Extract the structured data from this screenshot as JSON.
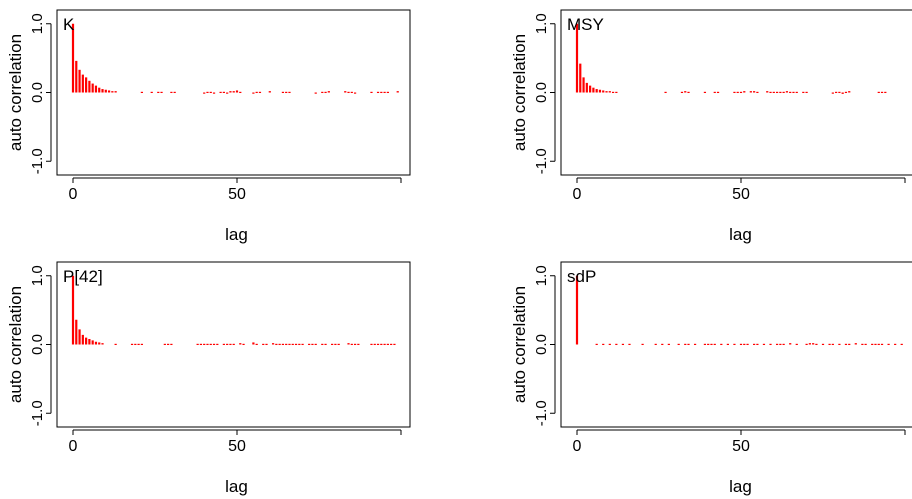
{
  "bar_color": "#ff0000",
  "chart_data": [
    {
      "type": "bar",
      "title": "K",
      "xlabel": "lag",
      "ylabel": "auto correlation",
      "xlim": [
        0,
        100
      ],
      "ylim": [
        -1.2,
        1.2
      ],
      "xticks": [
        "0",
        "50"
      ],
      "yticks": [
        "-1.0",
        "0.0",
        "1.0"
      ],
      "x": [
        0,
        1,
        2,
        3,
        4,
        5,
        6,
        7,
        8,
        9,
        10,
        11,
        12,
        13,
        21,
        24,
        26,
        27,
        30,
        31,
        40,
        41,
        42,
        43,
        45,
        46,
        47,
        48,
        49,
        50,
        51,
        55,
        56,
        57,
        60,
        64,
        65,
        66,
        74,
        76,
        77,
        78,
        83,
        84,
        85,
        86,
        91,
        93,
        94,
        95,
        96,
        99
      ],
      "values": [
        1.0,
        0.46,
        0.33,
        0.26,
        0.22,
        0.17,
        0.13,
        0.1,
        0.07,
        0.05,
        0.04,
        0.03,
        0.02,
        0.02,
        0.01,
        0.01,
        0.01,
        0.01,
        0.01,
        0.01,
        -0.01,
        0.01,
        0.01,
        -0.01,
        0.01,
        0.01,
        -0.01,
        0.02,
        0.02,
        0.03,
        0.01,
        -0.01,
        0.01,
        0.01,
        0.02,
        0.01,
        0.01,
        0.01,
        -0.01,
        0.01,
        0.01,
        0.02,
        0.02,
        0.01,
        0.01,
        -0.01,
        0.01,
        0.01,
        0.01,
        0.01,
        0.01,
        0.02
      ]
    },
    {
      "type": "bar",
      "title": "MSY",
      "xlabel": "lag",
      "ylabel": "auto correlation",
      "xlim": [
        0,
        100
      ],
      "ylim": [
        -1.2,
        1.2
      ],
      "xticks": [
        "0",
        "50"
      ],
      "yticks": [
        "-1.0",
        "0.0",
        "1.0"
      ],
      "x": [
        0,
        1,
        2,
        3,
        4,
        5,
        6,
        7,
        8,
        9,
        10,
        11,
        12,
        27,
        32,
        33,
        34,
        39,
        42,
        43,
        48,
        49,
        50,
        51,
        53,
        54,
        55,
        58,
        59,
        60,
        61,
        62,
        63,
        64,
        65,
        66,
        67,
        69,
        70,
        78,
        79,
        80,
        81,
        82,
        83,
        92,
        93,
        94
      ],
      "values": [
        1.0,
        0.42,
        0.22,
        0.14,
        0.1,
        0.07,
        0.05,
        0.04,
        0.03,
        0.02,
        0.02,
        0.01,
        0.01,
        0.01,
        0.01,
        0.02,
        0.01,
        0.01,
        0.01,
        0.01,
        0.01,
        0.01,
        0.01,
        0.02,
        0.02,
        0.02,
        0.01,
        0.02,
        0.01,
        0.01,
        0.01,
        0.01,
        0.01,
        0.02,
        0.01,
        0.01,
        0.01,
        0.01,
        0.01,
        -0.01,
        0.01,
        0.01,
        -0.02,
        0.01,
        0.02,
        0.01,
        0.01,
        0.01
      ]
    },
    {
      "type": "bar",
      "title": "P[42]",
      "xlabel": "lag",
      "ylabel": "auto correlation",
      "xlim": [
        0,
        100
      ],
      "ylim": [
        -1.2,
        1.2
      ],
      "xticks": [
        "0",
        "50"
      ],
      "yticks": [
        "-1.0",
        "0.0",
        "1.0"
      ],
      "x": [
        0,
        1,
        2,
        3,
        4,
        5,
        6,
        7,
        8,
        9,
        13,
        18,
        19,
        20,
        21,
        28,
        29,
        30,
        38,
        39,
        40,
        41,
        42,
        43,
        44,
        46,
        47,
        48,
        49,
        51,
        52,
        55,
        56,
        58,
        59,
        61,
        62,
        63,
        64,
        65,
        66,
        67,
        68,
        69,
        70,
        72,
        73,
        74,
        76,
        77,
        79,
        80,
        81,
        84,
        85,
        86,
        87,
        91,
        92,
        93,
        94,
        95,
        96,
        97,
        98
      ],
      "values": [
        1.0,
        0.36,
        0.22,
        0.14,
        0.1,
        0.08,
        0.06,
        0.04,
        0.03,
        0.02,
        0.01,
        0.01,
        0.01,
        0.01,
        0.01,
        0.01,
        0.01,
        0.01,
        0.01,
        0.01,
        0.01,
        0.01,
        0.01,
        0.01,
        0.01,
        0.01,
        0.01,
        0.01,
        0.01,
        0.02,
        0.01,
        0.03,
        0.01,
        0.01,
        0.01,
        0.02,
        0.01,
        0.01,
        0.01,
        0.01,
        0.01,
        0.01,
        0.01,
        0.01,
        0.01,
        0.01,
        0.01,
        0.01,
        0.01,
        0.01,
        0.01,
        0.01,
        0.01,
        0.02,
        0.01,
        0.01,
        0.01,
        0.01,
        0.01,
        0.01,
        0.01,
        0.01,
        0.01,
        0.01,
        0.01
      ]
    },
    {
      "type": "bar",
      "title": "sdP",
      "xlabel": "lag",
      "ylabel": "auto correlation",
      "xlim": [
        0,
        100
      ],
      "ylim": [
        -1.2,
        1.2
      ],
      "xticks": [
        "0",
        "50"
      ],
      "yticks": [
        "-1.0",
        "0.0",
        "1.0"
      ],
      "x": [
        0,
        6,
        8,
        10,
        12,
        14,
        16,
        20,
        24,
        26,
        28,
        31,
        33,
        34,
        36,
        39,
        40,
        41,
        42,
        44,
        46,
        48,
        50,
        51,
        52,
        54,
        55,
        57,
        59,
        61,
        62,
        63,
        65,
        67,
        70,
        71,
        72,
        73,
        75,
        77,
        78,
        80,
        82,
        83,
        85,
        87,
        88,
        90,
        91,
        92,
        93,
        95,
        97,
        99
      ],
      "values": [
        1.0,
        0.01,
        0.01,
        0.01,
        0.01,
        0.01,
        0.01,
        0.01,
        0.01,
        0.01,
        0.01,
        0.01,
        0.01,
        0.01,
        0.01,
        0.01,
        0.01,
        0.01,
        0.01,
        0.01,
        0.01,
        0.01,
        0.01,
        0.01,
        0.01,
        0.01,
        0.01,
        0.01,
        0.01,
        0.01,
        0.01,
        0.01,
        0.02,
        0.01,
        0.01,
        0.02,
        0.02,
        0.01,
        0.01,
        0.01,
        0.01,
        0.01,
        0.01,
        0.01,
        0.02,
        0.01,
        0.01,
        0.01,
        0.01,
        0.01,
        0.01,
        0.01,
        0.01,
        0.01
      ]
    }
  ]
}
